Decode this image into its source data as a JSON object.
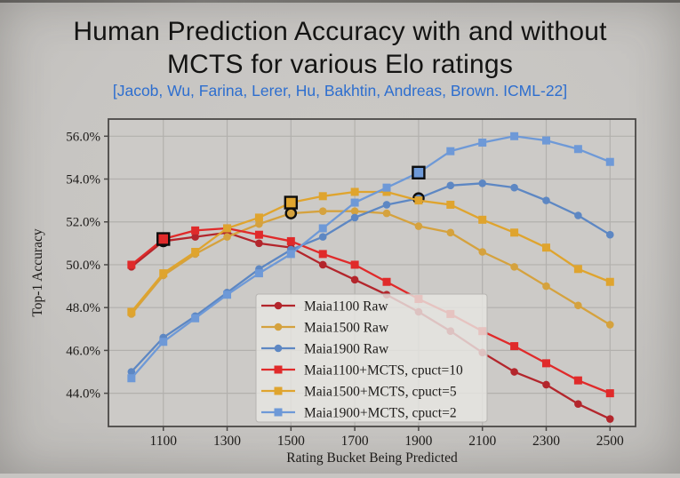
{
  "slide": {
    "title_line1": "Human Prediction Accuracy with and without",
    "title_line2": "MCTS for various Elo ratings",
    "citation": "[Jacob, Wu, Farina, Lerer, Hu, Bakhtin, Andreas, Brown. ICML-22]",
    "title_color": "#141413",
    "citation_color": "#2d6ecf"
  },
  "chart_data": {
    "type": "line",
    "title": "",
    "xlabel": "Rating Bucket Being Predicted",
    "ylabel": "Top-1 Accuracy",
    "x": [
      1000,
      1100,
      1200,
      1300,
      1400,
      1500,
      1600,
      1700,
      1800,
      1900,
      2000,
      2100,
      2200,
      2300,
      2400,
      2500
    ],
    "x_ticks": [
      {
        "v": 1100,
        "label": "1100"
      },
      {
        "v": 1300,
        "label": "1300"
      },
      {
        "v": 1500,
        "label": "1500"
      },
      {
        "v": 1700,
        "label": "1700"
      },
      {
        "v": 1900,
        "label": "1900"
      },
      {
        "v": 2100,
        "label": "2100"
      },
      {
        "v": 2300,
        "label": "2300"
      },
      {
        "v": 2500,
        "label": "2500"
      }
    ],
    "y_ticks": [
      {
        "v": 44,
        "label": "44.0%"
      },
      {
        "v": 46,
        "label": "46.0%"
      },
      {
        "v": 48,
        "label": "48.0%"
      },
      {
        "v": 50,
        "label": "50.0%"
      },
      {
        "v": 52,
        "label": "52.0%"
      },
      {
        "v": 54,
        "label": "54.0%"
      },
      {
        "v": 56,
        "label": "56.0%"
      }
    ],
    "x_range": [
      928,
      2580
    ],
    "y_range": [
      42.45,
      56.8
    ],
    "grid": true,
    "legend_position": "inside lower-center",
    "style": {
      "plot_bg": "#cccac7",
      "grid_color": "#b2b0ad",
      "axis_color": "#4a4846",
      "tick_text_color": "#1d1b19",
      "legend_bg": "rgba(231,229,226,0.82)",
      "legend_border": "#b6b4b1",
      "highlight_edge": "#0d0d0d"
    },
    "series": [
      {
        "name": "Maia1100 Raw",
        "marker": "circle",
        "color": "#b3262c",
        "highlight_x": 1100,
        "values": [
          49.9,
          51.1,
          51.3,
          51.5,
          51.0,
          50.8,
          50.0,
          49.3,
          48.6,
          47.8,
          46.9,
          45.9,
          45.0,
          44.4,
          43.5,
          42.8
        ]
      },
      {
        "name": "Maia1500 Raw",
        "marker": "circle",
        "color": "#d5a23e",
        "highlight_x": 1500,
        "values": [
          47.7,
          49.5,
          50.5,
          51.3,
          51.9,
          52.4,
          52.5,
          52.5,
          52.4,
          51.8,
          51.5,
          50.6,
          49.9,
          49.0,
          48.1,
          47.2
        ]
      },
      {
        "name": "Maia1900 Raw",
        "marker": "circle",
        "color": "#5d87c3",
        "highlight_x": 1900,
        "values": [
          45.0,
          46.6,
          47.6,
          48.7,
          49.8,
          50.7,
          51.3,
          52.2,
          52.8,
          53.1,
          53.7,
          53.8,
          53.6,
          53.0,
          52.3,
          51.4
        ]
      },
      {
        "name": "Maia1100+MCTS, cpuct=10",
        "marker": "square",
        "color": "#e02a2a",
        "highlight_x": 1100,
        "values": [
          50.0,
          51.2,
          51.6,
          51.7,
          51.4,
          51.1,
          50.5,
          50.0,
          49.2,
          48.4,
          47.7,
          46.9,
          46.2,
          45.4,
          44.6,
          44.0
        ]
      },
      {
        "name": "Maia1500+MCTS, cpuct=5",
        "marker": "square",
        "color": "#dfa42e",
        "highlight_x": 1500,
        "values": [
          47.8,
          49.6,
          50.6,
          51.7,
          52.2,
          52.9,
          53.2,
          53.4,
          53.4,
          53.0,
          52.8,
          52.1,
          51.5,
          50.8,
          49.8,
          49.2
        ]
      },
      {
        "name": "Maia1900+MCTS, cpuct=2",
        "marker": "square",
        "color": "#6e99d7",
        "highlight_x": 1900,
        "values": [
          44.7,
          46.4,
          47.5,
          48.6,
          49.6,
          50.5,
          51.7,
          52.9,
          53.6,
          54.3,
          55.3,
          55.7,
          56.0,
          55.8,
          55.4,
          54.8
        ]
      }
    ]
  }
}
